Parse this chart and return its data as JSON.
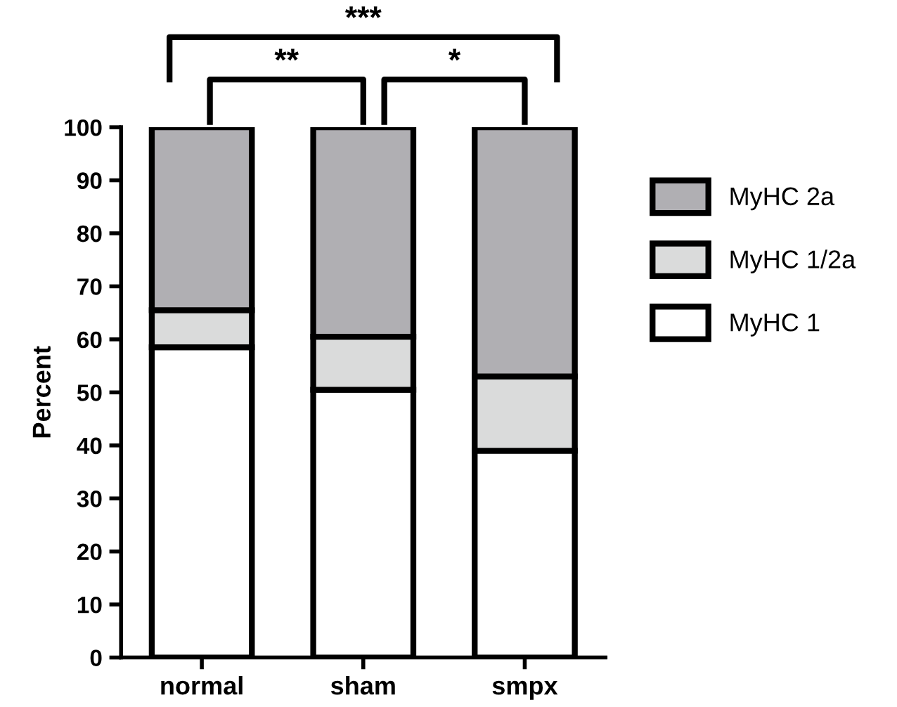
{
  "chart_data": {
    "type": "bar",
    "stacked": true,
    "ylabel": "Percent",
    "categories": [
      "normal",
      "sham",
      "smpx"
    ],
    "series": [
      {
        "name": "MyHC 1",
        "color": "#ffffff",
        "values": [
          58.5,
          50.5,
          39
        ]
      },
      {
        "name": "MyHC 1/2a",
        "color": "#dadbdb",
        "values": [
          7,
          10,
          14
        ]
      },
      {
        "name": "MyHC 2a",
        "color": "#b0afb3",
        "values": [
          34.5,
          39.5,
          47
        ]
      }
    ],
    "ylim": [
      0,
      100
    ],
    "yticks": [
      0,
      10,
      20,
      30,
      40,
      50,
      60,
      70,
      80,
      90,
      100
    ],
    "legend": "right",
    "grid": false,
    "annotations": [
      "**",
      "*",
      "***"
    ]
  }
}
